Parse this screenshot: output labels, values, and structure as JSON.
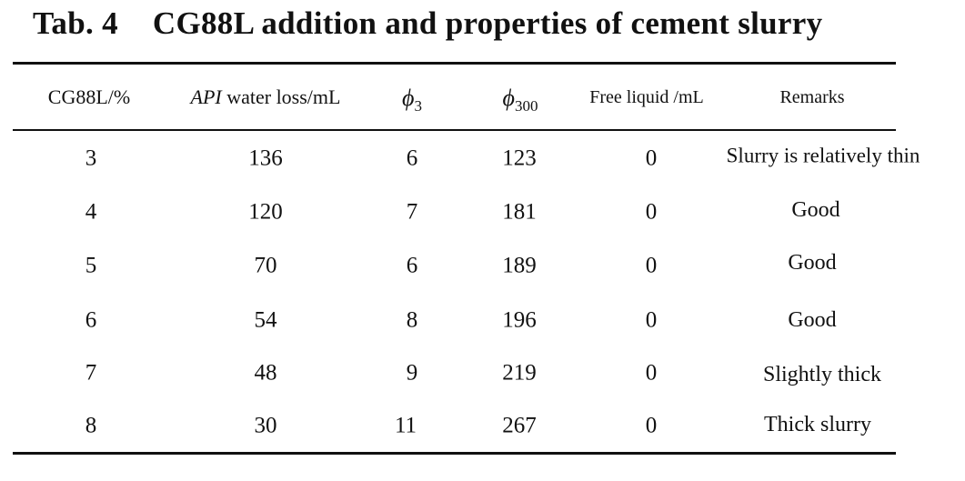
{
  "table": {
    "title_number": "Tab. 4",
    "title_text": "CG88L addition and properties of cement slurry",
    "headers": {
      "col1": "CG88L/%",
      "col2_italic": "API",
      "col2_rest": " water loss/mL",
      "col3_symbol": "ϕ",
      "col3_sub": "3",
      "col4_symbol": "ϕ",
      "col4_sub": "300",
      "col5": "Free liquid /mL",
      "col6": "Remarks"
    },
    "rows": [
      [
        "3",
        "136",
        "6",
        "123",
        "0",
        "Slurry is relatively thin"
      ],
      [
        "4",
        "120",
        "7",
        "181",
        "0",
        "Good"
      ],
      [
        "5",
        "70",
        "6",
        "189",
        "0",
        "Good"
      ],
      [
        "6",
        "54",
        "8",
        "196",
        "0",
        "Good"
      ],
      [
        "7",
        "48",
        "9",
        "219",
        "0",
        "Slightly thick"
      ],
      [
        "8",
        "30",
        "11",
        "267",
        "0",
        "Thick slurry"
      ]
    ]
  }
}
